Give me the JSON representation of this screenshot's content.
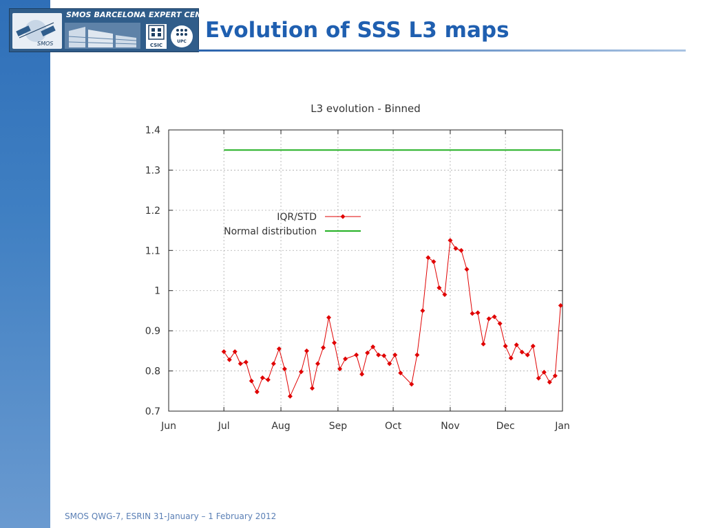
{
  "header": {
    "title": "Evolution of SSS L3 maps",
    "logo": {
      "title": "SMOS BARCELONA EXPERT CENTRE",
      "smos": "SMOS",
      "csic": "CSIC",
      "upc": "UPC"
    }
  },
  "footer": {
    "text": "SMOS QWG-7, ESRIN 31-January – 1 February 2012"
  },
  "colors": {
    "accent": "#1f5fb0",
    "series_iqr": "#e00000",
    "series_normal": "#22b022"
  },
  "chart_data": {
    "type": "line",
    "title": "L3 evolution - Binned",
    "xlabel": "",
    "ylabel": "",
    "x_tick_labels": [
      "Jun",
      "Jul",
      "Aug",
      "Sep",
      "Oct",
      "Nov",
      "Dec",
      "Jan"
    ],
    "xlim": [
      "2012-06-01",
      "2013-01-01"
    ],
    "ylim": [
      0.7,
      1.4
    ],
    "y_ticks": [
      0.7,
      0.8,
      0.9,
      1,
      1.1,
      1.2,
      1.3,
      1.4
    ],
    "y_tick_labels": [
      "0.7",
      "0.8",
      "0.9",
      "1",
      "1.1",
      "1.2",
      "1.3",
      "1.4"
    ],
    "grid": true,
    "legend_position": "center-left",
    "series": [
      {
        "name": "IQR/STD",
        "marker": "diamond",
        "points": [
          [
            "2012-07-01",
            0.848
          ],
          [
            "2012-07-04",
            0.828
          ],
          [
            "2012-07-07",
            0.848
          ],
          [
            "2012-07-10",
            0.818
          ],
          [
            "2012-07-13",
            0.822
          ],
          [
            "2012-07-16",
            0.775
          ],
          [
            "2012-07-19",
            0.748
          ],
          [
            "2012-07-22",
            0.783
          ],
          [
            "2012-07-25",
            0.778
          ],
          [
            "2012-07-28",
            0.818
          ],
          [
            "2012-07-31",
            0.855
          ],
          [
            "2012-08-03",
            0.805
          ],
          [
            "2012-08-06",
            0.737
          ],
          [
            "2012-08-12",
            0.798
          ],
          [
            "2012-08-15",
            0.85
          ],
          [
            "2012-08-18",
            0.757
          ],
          [
            "2012-08-21",
            0.818
          ],
          [
            "2012-08-24",
            0.858
          ],
          [
            "2012-08-27",
            0.933
          ],
          [
            "2012-08-30",
            0.87
          ],
          [
            "2012-09-02",
            0.805
          ],
          [
            "2012-09-05",
            0.83
          ],
          [
            "2012-09-11",
            0.84
          ],
          [
            "2012-09-14",
            0.792
          ],
          [
            "2012-09-17",
            0.845
          ],
          [
            "2012-09-20",
            0.86
          ],
          [
            "2012-09-23",
            0.84
          ],
          [
            "2012-09-26",
            0.838
          ],
          [
            "2012-09-29",
            0.818
          ],
          [
            "2012-10-02",
            0.84
          ],
          [
            "2012-10-05",
            0.795
          ],
          [
            "2012-10-11",
            0.767
          ],
          [
            "2012-10-14",
            0.84
          ],
          [
            "2012-10-17",
            0.95
          ],
          [
            "2012-10-20",
            1.082
          ],
          [
            "2012-10-23",
            1.072
          ],
          [
            "2012-10-26",
            1.007
          ],
          [
            "2012-10-29",
            0.99
          ],
          [
            "2012-11-01",
            1.125
          ],
          [
            "2012-11-04",
            1.105
          ],
          [
            "2012-11-07",
            1.1
          ],
          [
            "2012-11-10",
            1.053
          ],
          [
            "2012-11-13",
            0.943
          ],
          [
            "2012-11-16",
            0.945
          ],
          [
            "2012-11-19",
            0.867
          ],
          [
            "2012-11-22",
            0.93
          ],
          [
            "2012-11-25",
            0.935
          ],
          [
            "2012-11-28",
            0.918
          ],
          [
            "2012-12-01",
            0.862
          ],
          [
            "2012-12-04",
            0.832
          ],
          [
            "2012-12-07",
            0.865
          ],
          [
            "2012-12-10",
            0.847
          ],
          [
            "2012-12-13",
            0.84
          ],
          [
            "2012-12-16",
            0.862
          ],
          [
            "2012-12-19",
            0.782
          ],
          [
            "2012-12-22",
            0.797
          ],
          [
            "2012-12-25",
            0.772
          ],
          [
            "2012-12-28",
            0.788
          ],
          [
            "2012-12-31",
            0.963
          ]
        ]
      },
      {
        "name": "Normal distribution",
        "marker": "none",
        "points": [
          [
            "2012-07-01",
            1.35
          ],
          [
            "2012-12-31",
            1.35
          ]
        ]
      }
    ]
  }
}
